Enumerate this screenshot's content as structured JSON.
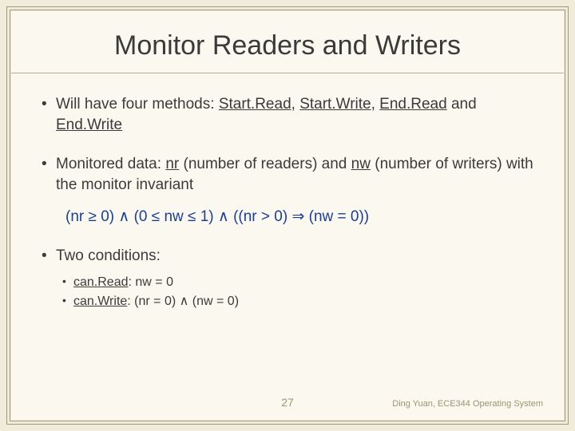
{
  "slide": {
    "title": "Monitor Readers and Writers",
    "background_color": "#fbf9ef",
    "page_background": "#f0ecdb",
    "border_color": "#a09a7d",
    "text_color": "#3a3a3a",
    "accent_color": "#1a3e99",
    "muted_color": "#9a9470",
    "title_fontsize": 34,
    "body_fontsize": 19,
    "sub_fontsize": 16
  },
  "bullets": {
    "b1_prefix": "Will have four methods: ",
    "b1_m1": "Start.Read",
    "b1_sep1": ", ",
    "b1_m2": "Start.Write",
    "b1_sep2": ", ",
    "b1_m3": "End.Read",
    "b1_sep3": " and ",
    "b1_m4": "End.Write",
    "b2_prefix": "Monitored data: ",
    "b2_v1": "nr",
    "b2_mid1": " (number of readers) and ",
    "b2_v2": "nw",
    "b2_mid2": " (number of writers) with the monitor invariant",
    "invariant": "(nr ≥ 0)  ∧  (0 ≤ nw ≤ 1)  ∧  ((nr > 0) ⇒ (nw = 0))",
    "b3_text": "Two conditions:",
    "b3_s1_name": "can.Read",
    "b3_s1_cond": ": nw = 0",
    "b3_s2_name": "can.Write",
    "b3_s2_cond": ": (nr = 0)  ∧  (nw = 0)"
  },
  "footer": {
    "page_number": "27",
    "attribution": "Ding Yuan, ECE344 Operating System"
  }
}
